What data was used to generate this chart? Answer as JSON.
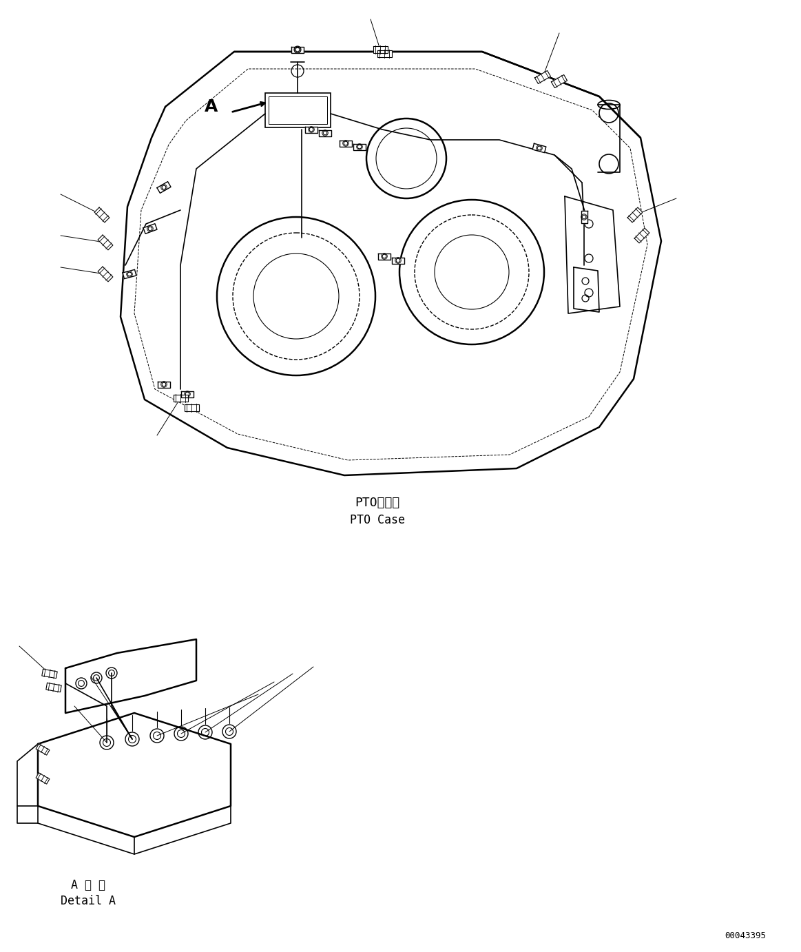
{
  "background_color": "#ffffff",
  "line_color": "#000000",
  "label_pto_case_jp": "PTOケース",
  "label_pto_case_en": "PTO Case",
  "label_detail_a_jp": "A 詳 細",
  "label_detail_a_en": "Detail A",
  "label_a": "A",
  "watermark": "00043395",
  "fig_width": 11.63,
  "fig_height": 13.82
}
